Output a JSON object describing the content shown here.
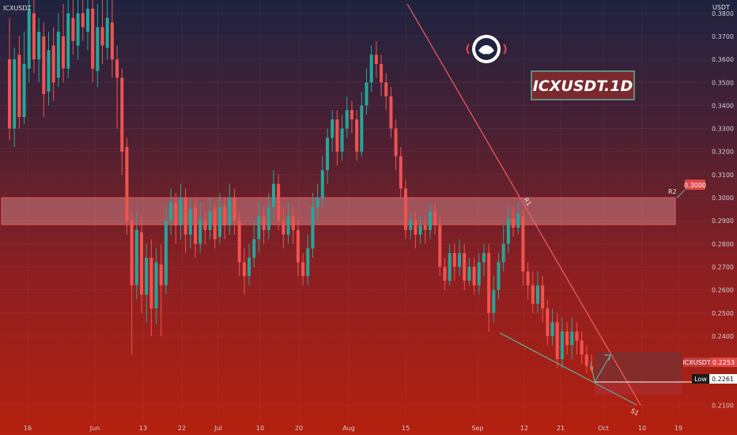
{
  "header": {
    "symbol_line": "ICXUSDT",
    "overlay_label": "ICXUSDT.1D"
  },
  "chart_data": {
    "type": "candlestick",
    "currency": "USDT",
    "ylim": [
      0.205,
      0.385
    ],
    "yticks": [
      "0.3800",
      "0.3700",
      "0.3600",
      "0.3500",
      "0.3400",
      "0.3300",
      "0.3200",
      "0.3100",
      "0.3000",
      "0.2900",
      "0.2800",
      "0.2700",
      "0.2600",
      "0.2500",
      "0.2400",
      "0.2100"
    ],
    "xticks": [
      "16",
      "Jun",
      "13",
      "22",
      "Jul",
      "10",
      "20",
      "Aug",
      "15",
      "Sep",
      "12",
      "21",
      "Oct",
      "10",
      "19"
    ],
    "candles": [
      [
        0.36,
        0.33,
        0.378,
        0.325
      ],
      [
        0.33,
        0.36,
        0.365,
        0.322
      ],
      [
        0.362,
        0.335,
        0.37,
        0.33
      ],
      [
        0.335,
        0.358,
        0.372,
        0.332
      ],
      [
        0.356,
        0.382,
        0.388,
        0.35
      ],
      [
        0.38,
        0.36,
        0.386,
        0.354
      ],
      [
        0.36,
        0.372,
        0.378,
        0.35
      ],
      [
        0.37,
        0.345,
        0.376,
        0.335
      ],
      [
        0.346,
        0.364,
        0.372,
        0.34
      ],
      [
        0.366,
        0.35,
        0.374,
        0.342
      ],
      [
        0.352,
        0.372,
        0.38,
        0.348
      ],
      [
        0.37,
        0.356,
        0.384,
        0.35
      ],
      [
        0.356,
        0.38,
        0.386,
        0.352
      ],
      [
        0.378,
        0.368,
        0.386,
        0.362
      ],
      [
        0.366,
        0.38,
        0.386,
        0.36
      ],
      [
        0.38,
        0.374,
        0.39,
        0.368
      ],
      [
        0.372,
        0.382,
        0.39,
        0.364
      ],
      [
        0.382,
        0.356,
        0.388,
        0.35
      ],
      [
        0.355,
        0.374,
        0.384,
        0.348
      ],
      [
        0.374,
        0.366,
        0.388,
        0.358
      ],
      [
        0.365,
        0.378,
        0.39,
        0.36
      ],
      [
        0.376,
        0.36,
        0.386,
        0.352
      ],
      [
        0.36,
        0.352,
        0.366,
        0.33
      ],
      [
        0.352,
        0.32,
        0.356,
        0.31
      ],
      [
        0.322,
        0.29,
        0.326,
        0.284
      ],
      [
        0.29,
        0.262,
        0.294,
        0.232
      ],
      [
        0.262,
        0.286,
        0.294,
        0.256
      ],
      [
        0.285,
        0.258,
        0.292,
        0.25
      ],
      [
        0.258,
        0.274,
        0.28,
        0.246
      ],
      [
        0.274,
        0.252,
        0.282,
        0.24
      ],
      [
        0.252,
        0.272,
        0.278,
        0.245
      ],
      [
        0.271,
        0.262,
        0.28,
        0.24
      ],
      [
        0.262,
        0.29,
        0.296,
        0.258
      ],
      [
        0.29,
        0.298,
        0.304,
        0.284
      ],
      [
        0.298,
        0.288,
        0.302,
        0.28
      ],
      [
        0.288,
        0.3,
        0.306,
        0.282
      ],
      [
        0.3,
        0.284,
        0.304,
        0.276
      ],
      [
        0.284,
        0.295,
        0.3,
        0.278
      ],
      [
        0.296,
        0.28,
        0.3,
        0.274
      ],
      [
        0.28,
        0.291,
        0.298,
        0.276
      ],
      [
        0.29,
        0.286,
        0.294,
        0.28
      ],
      [
        0.286,
        0.294,
        0.3,
        0.282
      ],
      [
        0.295,
        0.282,
        0.298,
        0.278
      ],
      [
        0.283,
        0.296,
        0.302,
        0.28
      ],
      [
        0.296,
        0.288,
        0.3,
        0.282
      ],
      [
        0.288,
        0.3,
        0.306,
        0.284
      ],
      [
        0.3,
        0.29,
        0.304,
        0.284
      ],
      [
        0.29,
        0.272,
        0.294,
        0.266
      ],
      [
        0.272,
        0.266,
        0.278,
        0.258
      ],
      [
        0.266,
        0.274,
        0.28,
        0.262
      ],
      [
        0.274,
        0.282,
        0.29,
        0.27
      ],
      [
        0.282,
        0.292,
        0.298,
        0.276
      ],
      [
        0.292,
        0.286,
        0.296,
        0.28
      ],
      [
        0.286,
        0.296,
        0.302,
        0.282
      ],
      [
        0.296,
        0.306,
        0.312,
        0.29
      ],
      [
        0.306,
        0.29,
        0.31,
        0.286
      ],
      [
        0.29,
        0.284,
        0.296,
        0.278
      ],
      [
        0.284,
        0.292,
        0.298,
        0.28
      ],
      [
        0.292,
        0.286,
        0.296,
        0.28
      ],
      [
        0.286,
        0.272,
        0.29,
        0.266
      ],
      [
        0.272,
        0.266,
        0.276,
        0.262
      ],
      [
        0.266,
        0.278,
        0.284,
        0.262
      ],
      [
        0.278,
        0.296,
        0.302,
        0.274
      ],
      [
        0.296,
        0.3,
        0.306,
        0.29
      ],
      [
        0.3,
        0.312,
        0.318,
        0.296
      ],
      [
        0.312,
        0.326,
        0.33,
        0.306
      ],
      [
        0.326,
        0.334,
        0.338,
        0.32
      ],
      [
        0.334,
        0.32,
        0.338,
        0.314
      ],
      [
        0.32,
        0.33,
        0.336,
        0.316
      ],
      [
        0.33,
        0.338,
        0.344,
        0.326
      ],
      [
        0.338,
        0.334,
        0.342,
        0.328
      ],
      [
        0.334,
        0.32,
        0.338,
        0.316
      ],
      [
        0.32,
        0.34,
        0.346,
        0.318
      ],
      [
        0.34,
        0.35,
        0.356,
        0.336
      ],
      [
        0.35,
        0.362,
        0.366,
        0.346
      ],
      [
        0.362,
        0.358,
        0.368,
        0.352
      ],
      [
        0.358,
        0.35,
        0.362,
        0.344
      ],
      [
        0.35,
        0.344,
        0.354,
        0.338
      ],
      [
        0.344,
        0.33,
        0.348,
        0.326
      ],
      [
        0.33,
        0.318,
        0.334,
        0.312
      ],
      [
        0.318,
        0.304,
        0.322,
        0.3
      ],
      [
        0.304,
        0.286,
        0.308,
        0.282
      ],
      [
        0.286,
        0.29,
        0.294,
        0.282
      ],
      [
        0.29,
        0.284,
        0.294,
        0.278
      ],
      [
        0.284,
        0.288,
        0.292,
        0.28
      ],
      [
        0.288,
        0.286,
        0.292,
        0.28
      ],
      [
        0.286,
        0.294,
        0.298,
        0.282
      ],
      [
        0.294,
        0.288,
        0.298,
        0.284
      ],
      [
        0.288,
        0.27,
        0.292,
        0.266
      ],
      [
        0.27,
        0.264,
        0.274,
        0.26
      ],
      [
        0.264,
        0.276,
        0.28,
        0.262
      ],
      [
        0.276,
        0.27,
        0.28,
        0.264
      ],
      [
        0.27,
        0.276,
        0.282,
        0.266
      ],
      [
        0.276,
        0.264,
        0.28,
        0.26
      ],
      [
        0.264,
        0.27,
        0.274,
        0.262
      ],
      [
        0.27,
        0.262,
        0.274,
        0.258
      ],
      [
        0.262,
        0.272,
        0.276,
        0.258
      ],
      [
        0.272,
        0.276,
        0.28,
        0.266
      ],
      [
        0.276,
        0.25,
        0.28,
        0.242
      ],
      [
        0.25,
        0.26,
        0.266,
        0.246
      ],
      [
        0.26,
        0.272,
        0.276,
        0.256
      ],
      [
        0.272,
        0.28,
        0.288,
        0.268
      ],
      [
        0.28,
        0.291,
        0.296,
        0.276
      ],
      [
        0.291,
        0.287,
        0.296,
        0.283
      ],
      [
        0.287,
        0.293,
        0.298,
        0.284
      ],
      [
        0.292,
        0.268,
        0.295,
        0.262
      ],
      [
        0.268,
        0.262,
        0.272,
        0.256
      ],
      [
        0.262,
        0.254,
        0.268,
        0.25
      ],
      [
        0.254,
        0.262,
        0.268,
        0.25
      ],
      [
        0.262,
        0.252,
        0.266,
        0.246
      ],
      [
        0.252,
        0.24,
        0.256,
        0.236
      ],
      [
        0.24,
        0.246,
        0.252,
        0.236
      ],
      [
        0.246,
        0.23,
        0.25,
        0.226
      ],
      [
        0.23,
        0.242,
        0.248,
        0.226
      ],
      [
        0.242,
        0.236,
        0.246,
        0.232
      ],
      [
        0.236,
        0.242,
        0.248,
        0.23
      ],
      [
        0.242,
        0.238,
        0.246,
        0.232
      ],
      [
        0.238,
        0.232,
        0.242,
        0.228
      ],
      [
        0.232,
        0.227,
        0.236,
        0.224
      ],
      [
        0.227,
        0.2253,
        0.232,
        0.224
      ]
    ],
    "zones": [
      {
        "label": "R2",
        "from": 0.2885,
        "to": 0.3
      }
    ],
    "levels": [
      {
        "label": "R2",
        "value": "0.3000"
      },
      {
        "label": "ICXUSDT",
        "value": "0.2253"
      },
      {
        "label": "Low",
        "value": "0.2261"
      }
    ],
    "trendline_labels": [
      "R1",
      "S1"
    ]
  }
}
